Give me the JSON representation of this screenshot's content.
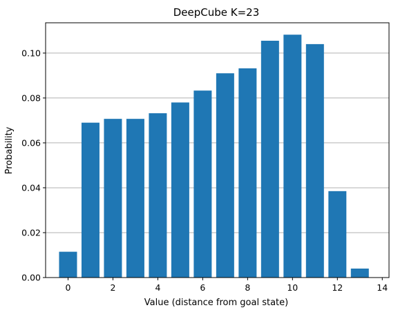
{
  "chart_data": {
    "type": "bar",
    "title": "DeepCube K=23",
    "xlabel": "Value (distance from goal state)",
    "ylabel": "Probability",
    "x": [
      0,
      1,
      2,
      3,
      4,
      5,
      6,
      7,
      8,
      9,
      10,
      11,
      12,
      13
    ],
    "values": [
      0.0115,
      0.069,
      0.0707,
      0.0707,
      0.0732,
      0.078,
      0.0833,
      0.091,
      0.0932,
      0.1055,
      0.1082,
      0.104,
      0.0385,
      0.004
    ],
    "xlim": [
      -1.0,
      14.3
    ],
    "ylim": [
      0,
      0.1135
    ],
    "xticks": [
      "0",
      "2",
      "4",
      "6",
      "8",
      "10",
      "12",
      "14"
    ],
    "yticks": [
      "0.00",
      "0.02",
      "0.04",
      "0.06",
      "0.08",
      "0.10"
    ],
    "grid": "horizontal",
    "bar_color": "#1f77b4",
    "grid_color": "#b0b0b0"
  }
}
